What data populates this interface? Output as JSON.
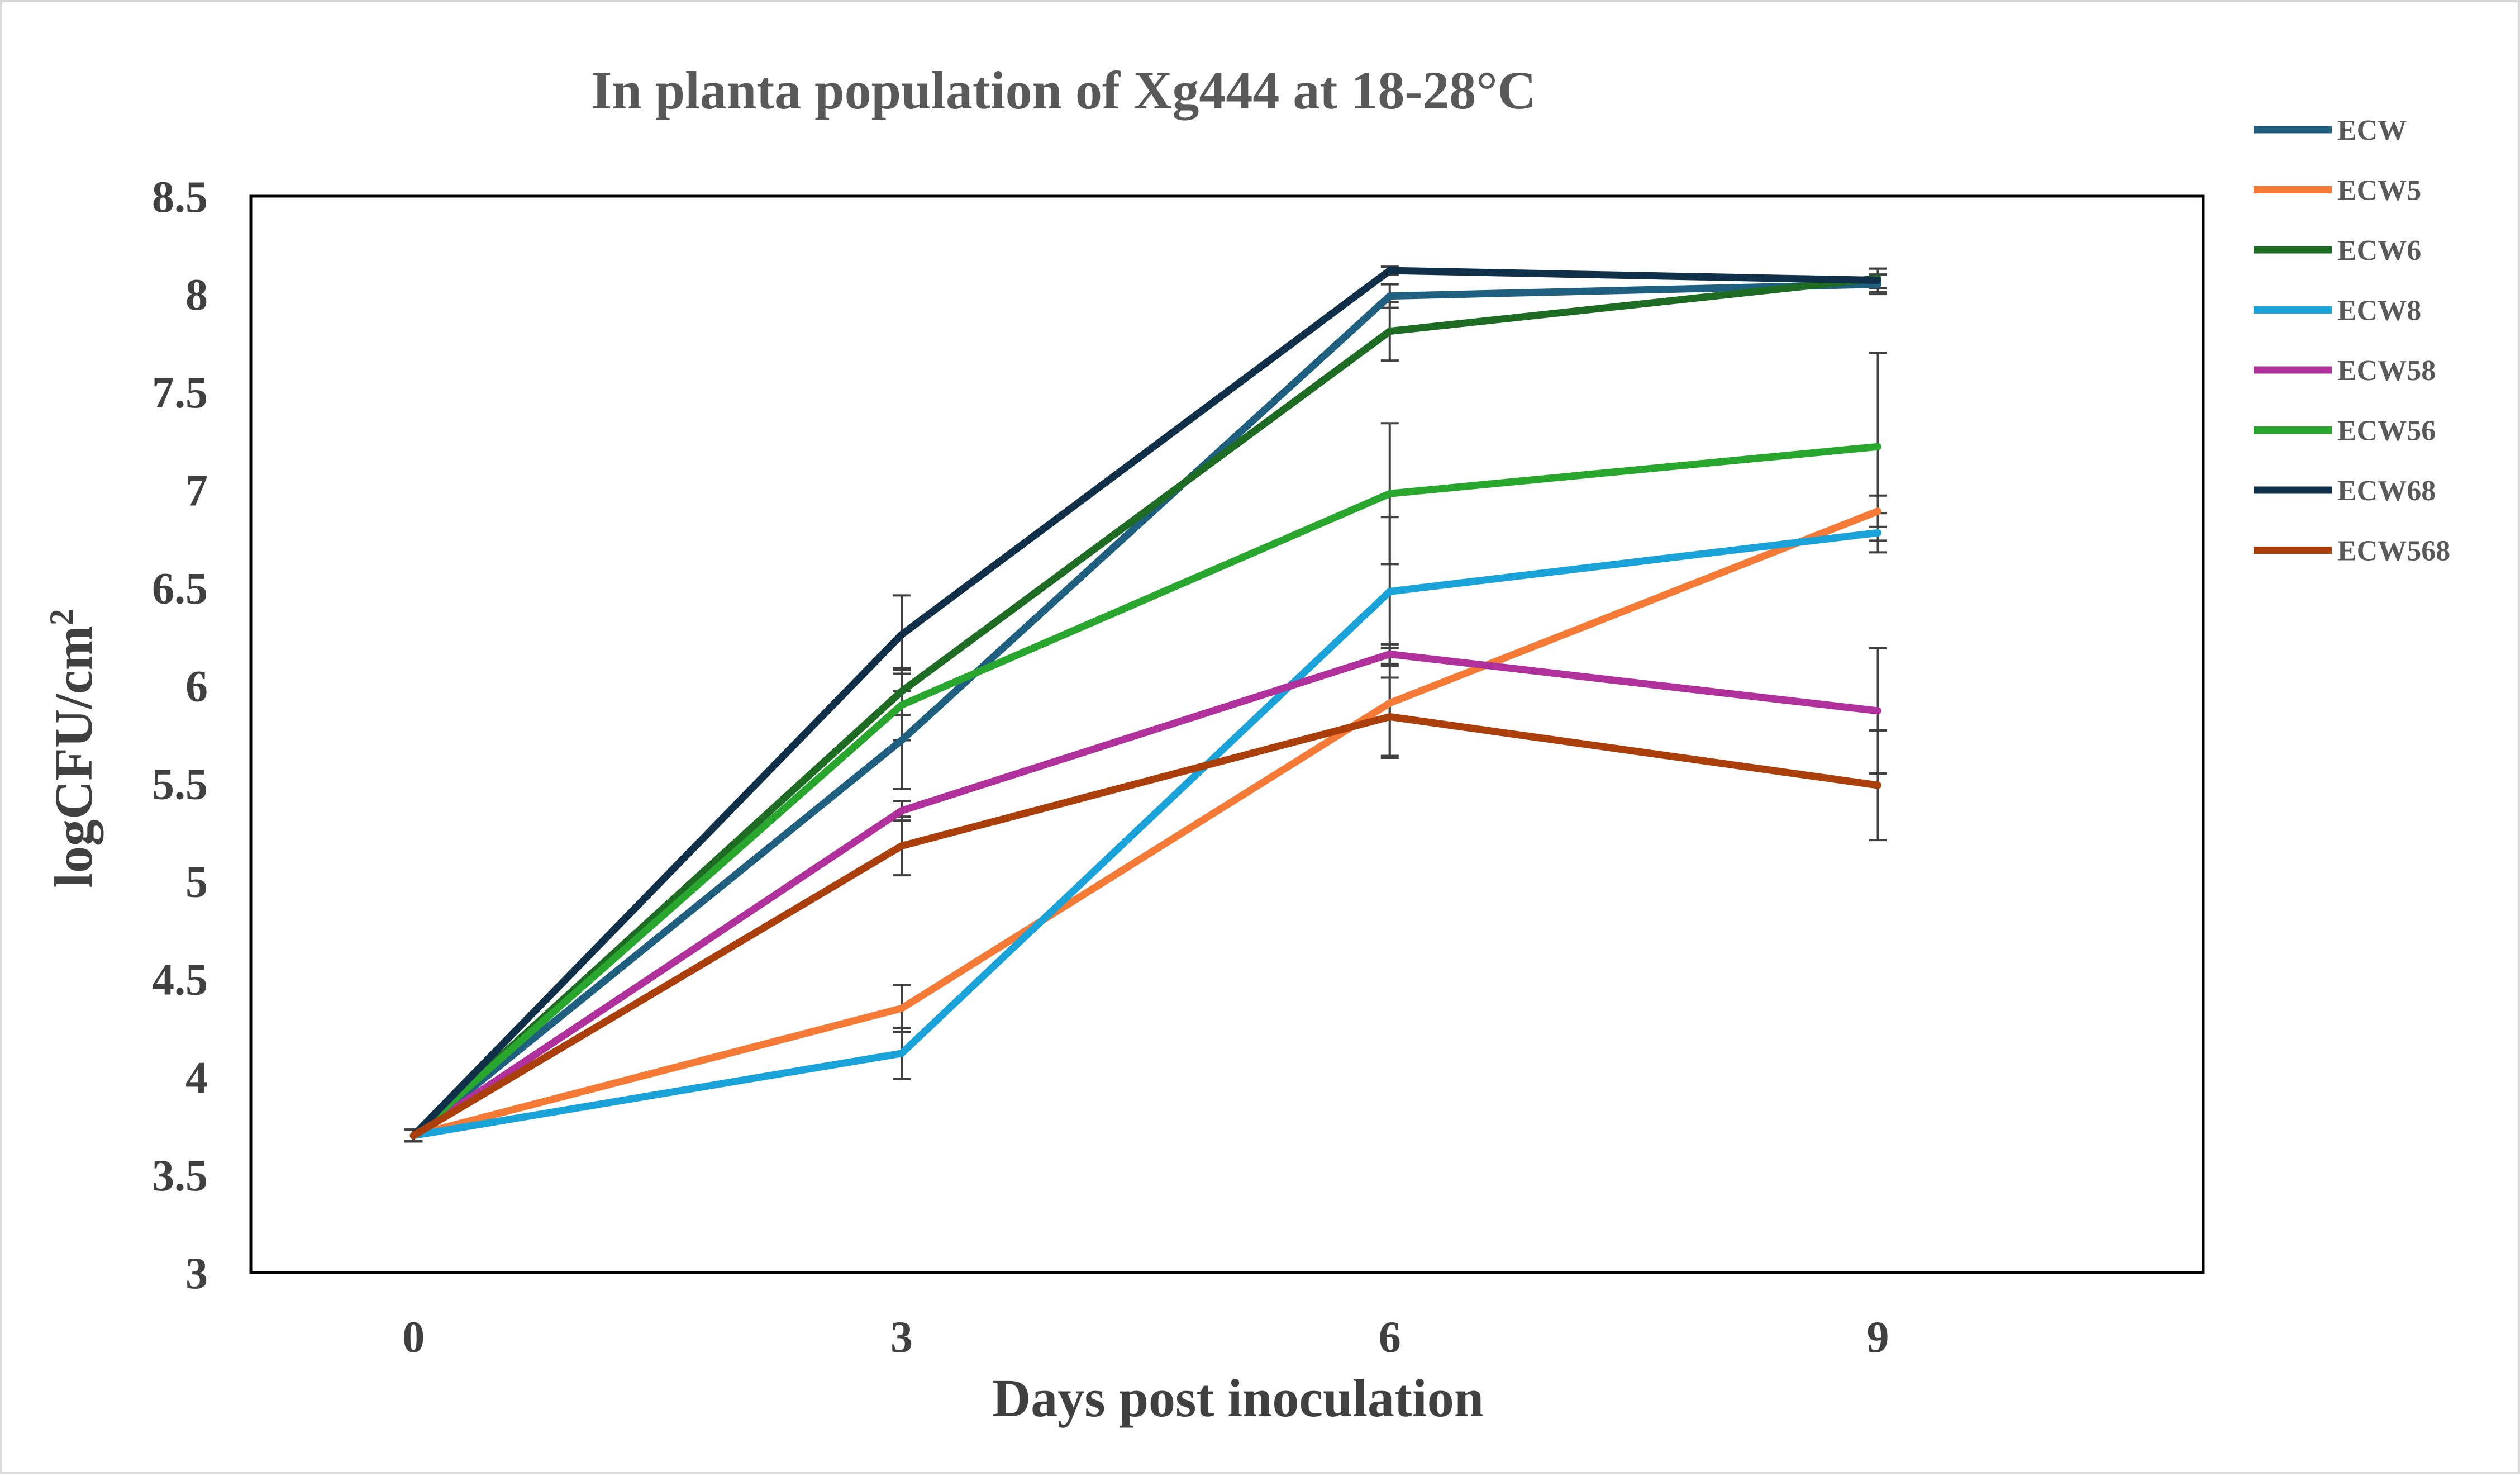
{
  "chart_data": {
    "type": "line",
    "title": "In planta population of Xg444 at 18-28°C",
    "xlabel": "Days post inoculation",
    "ylabel": "logCFU/cm",
    "ylabel_superscript": "2",
    "x": [
      0,
      3,
      6,
      9
    ],
    "x_tick_labels": [
      "0",
      "3",
      "6",
      "9"
    ],
    "xlim": [
      -1,
      11
    ],
    "ylim": [
      3,
      8.5
    ],
    "y_tick_labels": [
      "3",
      "3.5",
      "4",
      "4.5",
      "5",
      "5.5",
      "6",
      "6.5",
      "7",
      "7.5",
      "8",
      "8.5"
    ],
    "grid": false,
    "legend_position": "right",
    "series": [
      {
        "name": "ECW",
        "color": "#1f5f80",
        "values": [
          3.7,
          5.72,
          7.99,
          8.05
        ],
        "errors": [
          0.03,
          0.25,
          0.06,
          0.05
        ]
      },
      {
        "name": "ECW5",
        "color": "#f47a36",
        "values": [
          3.7,
          4.35,
          5.91,
          6.89
        ],
        "errors": [
          0.03,
          0.12,
          0.28,
          0.08
        ]
      },
      {
        "name": "ECW6",
        "color": "#1e6b24",
        "values": [
          3.7,
          5.97,
          7.81,
          8.08
        ],
        "errors": [
          0.03,
          0.12,
          0.15,
          0.05
        ]
      },
      {
        "name": "ECW8",
        "color": "#19a3d8",
        "values": [
          3.7,
          4.12,
          6.48,
          6.78
        ],
        "errors": [
          0.03,
          0.13,
          0.38,
          0.1
        ]
      },
      {
        "name": "ECW58",
        "color": "#b0319c",
        "values": [
          3.7,
          5.36,
          6.16,
          5.87
        ],
        "errors": [
          0.03,
          0.05,
          0.05,
          0.32
        ]
      },
      {
        "name": "ECW56",
        "color": "#28a62e",
        "values": [
          3.7,
          5.9,
          6.98,
          7.22
        ],
        "errors": [
          0.03,
          0.18,
          0.36,
          0.48
        ]
      },
      {
        "name": "ECW68",
        "color": "#0f3048",
        "values": [
          3.7,
          6.26,
          8.12,
          8.07
        ],
        "errors": [
          0.03,
          0.2,
          0.02,
          0.06
        ]
      },
      {
        "name": "ECW568",
        "color": "#aa3f0c",
        "values": [
          3.7,
          5.18,
          5.84,
          5.49
        ],
        "errors": [
          0.03,
          0.15,
          0.2,
          0.28
        ]
      }
    ]
  }
}
